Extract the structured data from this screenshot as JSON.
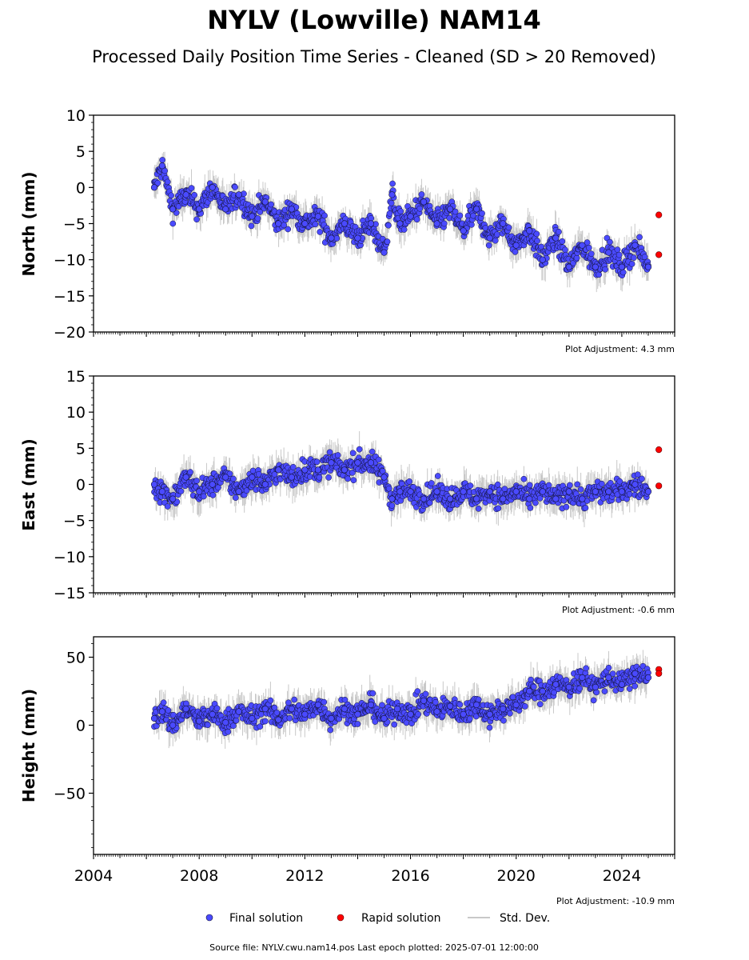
{
  "title": "NYLV (Lowville) NAM14",
  "subtitle": "Processed Daily Position Time Series - Cleaned (SD > 20 Removed)",
  "legend": {
    "final": "Final solution",
    "rapid": "Rapid solution",
    "std": "Std. Dev."
  },
  "source_text": "Source file: NYLV.cwu.nam14.pos  Last epoch plotted: 2025-07-01 12:00:00",
  "colors": {
    "final_fill": "#4a4aff",
    "final_edge": "#111133",
    "rapid_fill": "#ff0000",
    "std": "#c8c8c8"
  },
  "chart_data": [
    {
      "type": "scatter",
      "ylabel": "North (mm)",
      "xlim": [
        2004,
        2026
      ],
      "ylim": [
        -20,
        10
      ],
      "yticks": [
        10,
        5,
        0,
        -5,
        -10,
        -15,
        -20
      ],
      "note": "Plot Adjustment: 4.3 mm",
      "series": [
        {
          "name": "Final solution",
          "x": [
            2006.3,
            2006.6,
            2007.0,
            2007.5,
            2008.0,
            2008.5,
            2009.0,
            2009.5,
            2010.0,
            2010.5,
            2011.0,
            2011.5,
            2012.0,
            2012.5,
            2013.0,
            2013.5,
            2014.0,
            2014.5,
            2015.0,
            2015.3,
            2015.6,
            2016.0,
            2016.5,
            2017.0,
            2017.5,
            2018.0,
            2018.5,
            2019.0,
            2019.5,
            2020.0,
            2020.5,
            2021.0,
            2021.5,
            2022.0,
            2022.5,
            2023.0,
            2023.5,
            2024.0,
            2024.5,
            2025.0
          ],
          "y": [
            0,
            3,
            -3,
            -1,
            -3,
            0,
            -3,
            -1,
            -4,
            -2,
            -5,
            -3,
            -5,
            -4,
            -7,
            -5,
            -7,
            -5,
            -9,
            -1,
            -5,
            -4,
            -2,
            -5,
            -3,
            -6,
            -3,
            -7,
            -5,
            -8,
            -6,
            -10,
            -7,
            -11,
            -8,
            -11,
            -9,
            -11,
            -8,
            -11
          ]
        },
        {
          "name": "Rapid solution",
          "x": [
            2025.4,
            2025.4
          ],
          "y": [
            -3.8,
            -9.3
          ]
        }
      ]
    },
    {
      "type": "scatter",
      "ylabel": "East (mm)",
      "xlim": [
        2004,
        2026
      ],
      "ylim": [
        -15,
        15
      ],
      "yticks": [
        15,
        10,
        5,
        0,
        -5,
        -10,
        -15
      ],
      "note": "Plot Adjustment: -0.6 mm",
      "series": [
        {
          "name": "Final solution",
          "x": [
            2006.3,
            2006.6,
            2007.0,
            2007.5,
            2008.0,
            2008.5,
            2009.0,
            2009.5,
            2010.0,
            2010.5,
            2011.0,
            2011.5,
            2012.0,
            2012.5,
            2013.0,
            2013.5,
            2014.0,
            2014.5,
            2015.0,
            2015.3,
            2015.6,
            2016.0,
            2016.5,
            2017.0,
            2017.5,
            2018.0,
            2018.5,
            2019.0,
            2019.5,
            2020.0,
            2020.5,
            2021.0,
            2021.5,
            2022.0,
            2022.5,
            2023.0,
            2023.5,
            2024.0,
            2024.5,
            2025.0
          ],
          "y": [
            0,
            -1,
            -2,
            1,
            -1,
            0,
            1,
            -1,
            1,
            0,
            2,
            1,
            2,
            2,
            3,
            2,
            3,
            3,
            1,
            -2,
            -1,
            -1,
            -2,
            -1,
            -2,
            -1,
            -2,
            -1,
            -2,
            -1,
            -2,
            -1,
            -2,
            -1,
            -2,
            -1,
            -1,
            -1,
            0,
            -1
          ]
        },
        {
          "name": "Rapid solution",
          "x": [
            2025.4,
            2025.4
          ],
          "y": [
            4.8,
            -0.2
          ]
        }
      ]
    },
    {
      "type": "scatter",
      "ylabel": "Height (mm)",
      "xlim": [
        2004,
        2026
      ],
      "ylim": [
        -95,
        65
      ],
      "yticks": [
        50,
        0,
        -50
      ],
      "xticks": [
        "2004",
        "2008",
        "2012",
        "2016",
        "2020",
        "2024"
      ],
      "note": "Plot Adjustment: -10.9 mm",
      "series": [
        {
          "name": "Final solution",
          "x": [
            2006.3,
            2006.6,
            2007.0,
            2007.5,
            2008.0,
            2008.5,
            2009.0,
            2009.5,
            2010.0,
            2010.5,
            2011.0,
            2011.5,
            2012.0,
            2012.5,
            2013.0,
            2013.5,
            2014.0,
            2014.5,
            2015.0,
            2015.5,
            2016.0,
            2016.5,
            2017.0,
            2017.5,
            2018.0,
            2018.5,
            2019.0,
            2019.5,
            2020.0,
            2020.5,
            2021.0,
            2021.5,
            2022.0,
            2022.5,
            2023.0,
            2023.5,
            2024.0,
            2024.5,
            2025.0
          ],
          "y": [
            5,
            10,
            0,
            12,
            3,
            8,
            2,
            10,
            5,
            12,
            4,
            12,
            8,
            15,
            5,
            12,
            8,
            15,
            5,
            12,
            8,
            18,
            10,
            14,
            8,
            15,
            8,
            12,
            15,
            25,
            25,
            30,
            28,
            35,
            28,
            35,
            30,
            38,
            35
          ]
        },
        {
          "name": "Rapid solution",
          "x": [
            2025.4,
            2025.4
          ],
          "y": [
            41,
            38
          ]
        }
      ]
    }
  ]
}
